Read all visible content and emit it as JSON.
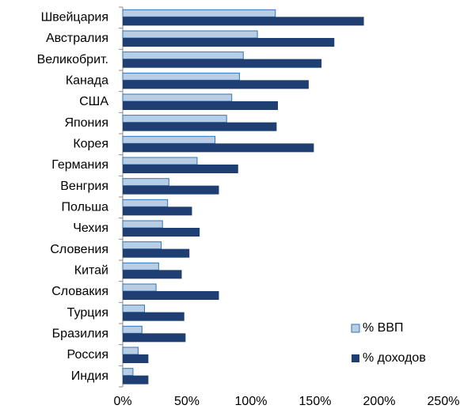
{
  "chart_data": {
    "type": "barh",
    "categories": [
      "Швейцария",
      "Австралия",
      "Великобрит.",
      "Канада",
      "США",
      "Япония",
      "Корея",
      "Германия",
      "Венгрия",
      "Польша",
      "Чехия",
      "Словения",
      "Китай",
      "Словакия",
      "Турция",
      "Бразилия",
      "Россия",
      "Индия"
    ],
    "series": [
      {
        "name": "% ВВП",
        "color": "#b9cde5",
        "values": [
          119,
          105,
          94,
          91,
          85,
          81,
          72,
          58,
          36,
          35,
          31,
          30,
          28,
          26,
          17,
          15,
          12,
          8
        ]
      },
      {
        "name": "% доходов",
        "color": "#1f3f73",
        "values": [
          188,
          165,
          155,
          145,
          121,
          120,
          149,
          90,
          75,
          54,
          60,
          52,
          46,
          75,
          48,
          49,
          20,
          20
        ]
      }
    ],
    "xlim": [
      0,
      250
    ],
    "xticks": [
      {
        "value": 0,
        "label": "0%"
      },
      {
        "value": 50,
        "label": "50%"
      },
      {
        "value": 100,
        "label": "100%"
      },
      {
        "value": 150,
        "label": "150%"
      },
      {
        "value": 200,
        "label": "200%"
      },
      {
        "value": 250,
        "label": "250%"
      }
    ],
    "grid": false,
    "legend": "lower right"
  }
}
